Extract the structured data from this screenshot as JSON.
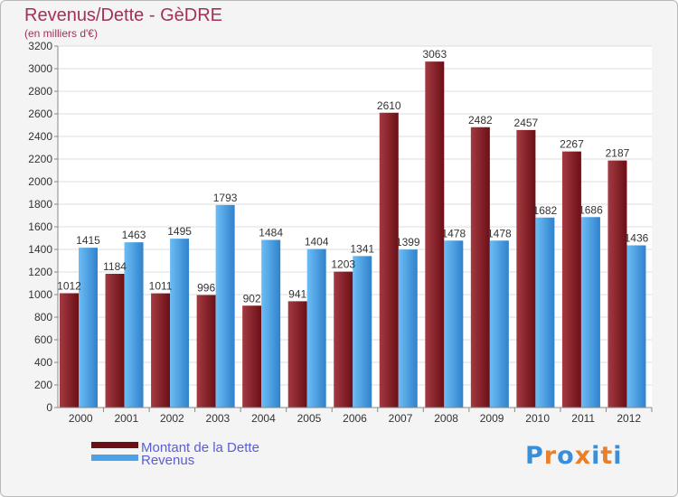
{
  "title": "Revenus/Dette - GèDRE",
  "subtitle": "(en milliers d'€)",
  "legend": [
    {
      "label": "Montant de la Dette",
      "color": "#6b0f16"
    },
    {
      "label": "Revenus",
      "color": "#4aa3e8"
    }
  ],
  "logo": {
    "letters": [
      "P",
      "r",
      "o",
      "x",
      "i",
      "t",
      "i"
    ],
    "colors": [
      "#3a8fd8",
      "#e8802a",
      "#3a8fd8",
      "#e8802a",
      "#3a8fd8",
      "#e8802a",
      "#3a8fd8"
    ]
  },
  "colors": {
    "debt": "#6b0f16",
    "debt_light": "#a43a42",
    "revenue": "#2f82cc",
    "revenue_light": "#6cbdf5"
  },
  "chart_data": {
    "type": "bar",
    "categories": [
      "2000",
      "2001",
      "2002",
      "2003",
      "2004",
      "2005",
      "2006",
      "2007",
      "2008",
      "2009",
      "2010",
      "2011",
      "2012"
    ],
    "series": [
      {
        "name": "Montant de la Dette",
        "values": [
          1012,
          1184,
          1011,
          996,
          902,
          941,
          1203,
          2610,
          3063,
          2482,
          2457,
          2267,
          2187
        ],
        "labels": [
          "1012",
          "1184",
          "1011",
          "996",
          "902",
          "941",
          "1203",
          "2610",
          "3063",
          "2482",
          "2457",
          "2267",
          "2187"
        ]
      },
      {
        "name": "Revenus",
        "values": [
          1415,
          1463,
          1495,
          1793,
          1484,
          1404,
          1341,
          1399,
          1478,
          1478,
          1682,
          1686,
          1436
        ],
        "labels": [
          "1415",
          "1463",
          "1495",
          "1793",
          "1484",
          "1404",
          "1341",
          "1399",
          "1478",
          "1478",
          "1682",
          "1686",
          "1436"
        ]
      }
    ],
    "ylim": [
      0,
      3200
    ],
    "yticks": [
      "0",
      "200",
      "400",
      "600",
      "800",
      "1000",
      "1200",
      "1400",
      "1600",
      "1800",
      "2000",
      "2200",
      "2400",
      "2600",
      "2800",
      "3000",
      "3200"
    ],
    "grid": true,
    "legend_position": "bottom-left"
  }
}
